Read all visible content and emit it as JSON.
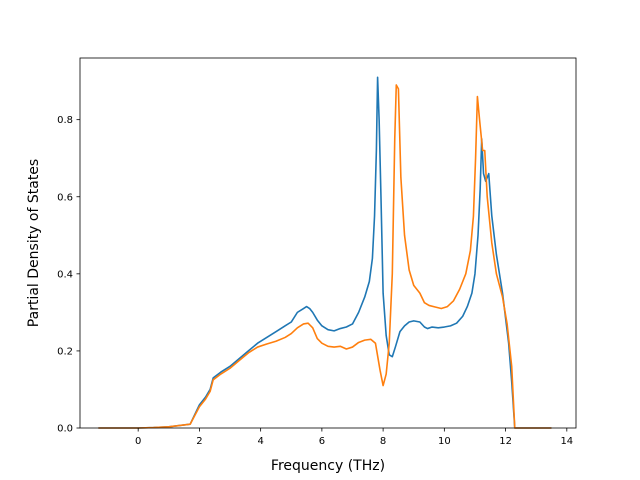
{
  "chart_data": {
    "type": "line",
    "title": "",
    "xlabel": "Frequency (THz)",
    "ylabel": "Partial Density of States",
    "xlim": [
      -1.9,
      14.3
    ],
    "ylim": [
      0.0,
      0.96
    ],
    "x_ticks": [
      0,
      2,
      4,
      6,
      8,
      10,
      12,
      14
    ],
    "y_ticks": [
      0.0,
      0.2,
      0.4,
      0.6,
      0.8
    ],
    "x_tick_labels": [
      "0",
      "2",
      "4",
      "6",
      "8",
      "10",
      "12",
      "14"
    ],
    "y_tick_labels": [
      "0.0",
      "0.2",
      "0.4",
      "0.6",
      "0.8"
    ],
    "grid": false,
    "legend": "none",
    "series": [
      {
        "color": "#1f77b4",
        "points": [
          [
            -1.3,
            0.0
          ],
          [
            0.0,
            0.0
          ],
          [
            0.5,
            0.001
          ],
          [
            1.0,
            0.003
          ],
          [
            1.5,
            0.008
          ],
          [
            1.7,
            0.01
          ],
          [
            2.0,
            0.06
          ],
          [
            2.2,
            0.08
          ],
          [
            2.35,
            0.1
          ],
          [
            2.45,
            0.13
          ],
          [
            2.7,
            0.145
          ],
          [
            3.0,
            0.16
          ],
          [
            3.3,
            0.18
          ],
          [
            3.6,
            0.2
          ],
          [
            3.9,
            0.22
          ],
          [
            4.2,
            0.235
          ],
          [
            4.5,
            0.25
          ],
          [
            4.8,
            0.265
          ],
          [
            5.0,
            0.275
          ],
          [
            5.2,
            0.3
          ],
          [
            5.4,
            0.31
          ],
          [
            5.5,
            0.315
          ],
          [
            5.6,
            0.31
          ],
          [
            5.7,
            0.3
          ],
          [
            5.85,
            0.28
          ],
          [
            6.0,
            0.265
          ],
          [
            6.2,
            0.255
          ],
          [
            6.4,
            0.252
          ],
          [
            6.6,
            0.258
          ],
          [
            6.8,
            0.262
          ],
          [
            7.0,
            0.27
          ],
          [
            7.2,
            0.3
          ],
          [
            7.4,
            0.34
          ],
          [
            7.55,
            0.38
          ],
          [
            7.65,
            0.44
          ],
          [
            7.72,
            0.55
          ],
          [
            7.78,
            0.72
          ],
          [
            7.82,
            0.91
          ],
          [
            7.87,
            0.8
          ],
          [
            7.93,
            0.6
          ],
          [
            8.0,
            0.35
          ],
          [
            8.1,
            0.24
          ],
          [
            8.2,
            0.19
          ],
          [
            8.3,
            0.185
          ],
          [
            8.4,
            0.21
          ],
          [
            8.55,
            0.25
          ],
          [
            8.7,
            0.265
          ],
          [
            8.85,
            0.275
          ],
          [
            9.0,
            0.278
          ],
          [
            9.2,
            0.275
          ],
          [
            9.35,
            0.262
          ],
          [
            9.45,
            0.258
          ],
          [
            9.6,
            0.262
          ],
          [
            9.8,
            0.26
          ],
          [
            10.0,
            0.262
          ],
          [
            10.2,
            0.265
          ],
          [
            10.4,
            0.272
          ],
          [
            10.6,
            0.29
          ],
          [
            10.75,
            0.315
          ],
          [
            10.9,
            0.35
          ],
          [
            11.0,
            0.4
          ],
          [
            11.1,
            0.5
          ],
          [
            11.17,
            0.62
          ],
          [
            11.22,
            0.75
          ],
          [
            11.28,
            0.66
          ],
          [
            11.35,
            0.64
          ],
          [
            11.45,
            0.66
          ],
          [
            11.55,
            0.55
          ],
          [
            11.7,
            0.45
          ],
          [
            11.9,
            0.35
          ],
          [
            12.1,
            0.22
          ],
          [
            12.2,
            0.12
          ],
          [
            12.3,
            0.0
          ],
          [
            13.5,
            0.0
          ]
        ]
      },
      {
        "color": "#ff7f0e",
        "points": [
          [
            -1.3,
            0.0
          ],
          [
            0.0,
            0.0
          ],
          [
            0.5,
            0.001
          ],
          [
            1.0,
            0.003
          ],
          [
            1.5,
            0.008
          ],
          [
            1.7,
            0.01
          ],
          [
            2.0,
            0.055
          ],
          [
            2.2,
            0.075
          ],
          [
            2.35,
            0.095
          ],
          [
            2.45,
            0.125
          ],
          [
            2.7,
            0.14
          ],
          [
            3.0,
            0.155
          ],
          [
            3.3,
            0.175
          ],
          [
            3.6,
            0.195
          ],
          [
            3.9,
            0.21
          ],
          [
            4.2,
            0.218
          ],
          [
            4.5,
            0.225
          ],
          [
            4.8,
            0.235
          ],
          [
            5.0,
            0.245
          ],
          [
            5.2,
            0.26
          ],
          [
            5.4,
            0.27
          ],
          [
            5.55,
            0.272
          ],
          [
            5.7,
            0.26
          ],
          [
            5.85,
            0.232
          ],
          [
            6.0,
            0.22
          ],
          [
            6.2,
            0.212
          ],
          [
            6.4,
            0.21
          ],
          [
            6.6,
            0.212
          ],
          [
            6.8,
            0.205
          ],
          [
            7.0,
            0.21
          ],
          [
            7.2,
            0.222
          ],
          [
            7.4,
            0.228
          ],
          [
            7.6,
            0.23
          ],
          [
            7.75,
            0.22
          ],
          [
            7.9,
            0.15
          ],
          [
            8.0,
            0.11
          ],
          [
            8.1,
            0.14
          ],
          [
            8.2,
            0.22
          ],
          [
            8.3,
            0.4
          ],
          [
            8.38,
            0.75
          ],
          [
            8.43,
            0.89
          ],
          [
            8.5,
            0.88
          ],
          [
            8.58,
            0.65
          ],
          [
            8.7,
            0.5
          ],
          [
            8.85,
            0.41
          ],
          [
            9.0,
            0.37
          ],
          [
            9.2,
            0.35
          ],
          [
            9.35,
            0.325
          ],
          [
            9.5,
            0.318
          ],
          [
            9.7,
            0.314
          ],
          [
            9.9,
            0.31
          ],
          [
            10.1,
            0.315
          ],
          [
            10.3,
            0.33
          ],
          [
            10.5,
            0.36
          ],
          [
            10.7,
            0.4
          ],
          [
            10.85,
            0.46
          ],
          [
            10.95,
            0.55
          ],
          [
            11.02,
            0.7
          ],
          [
            11.08,
            0.86
          ],
          [
            11.15,
            0.8
          ],
          [
            11.25,
            0.72
          ],
          [
            11.32,
            0.72
          ],
          [
            11.4,
            0.6
          ],
          [
            11.55,
            0.48
          ],
          [
            11.7,
            0.4
          ],
          [
            11.9,
            0.34
          ],
          [
            12.05,
            0.27
          ],
          [
            12.2,
            0.16
          ],
          [
            12.3,
            0.0
          ],
          [
            13.5,
            0.0
          ]
        ]
      }
    ]
  }
}
